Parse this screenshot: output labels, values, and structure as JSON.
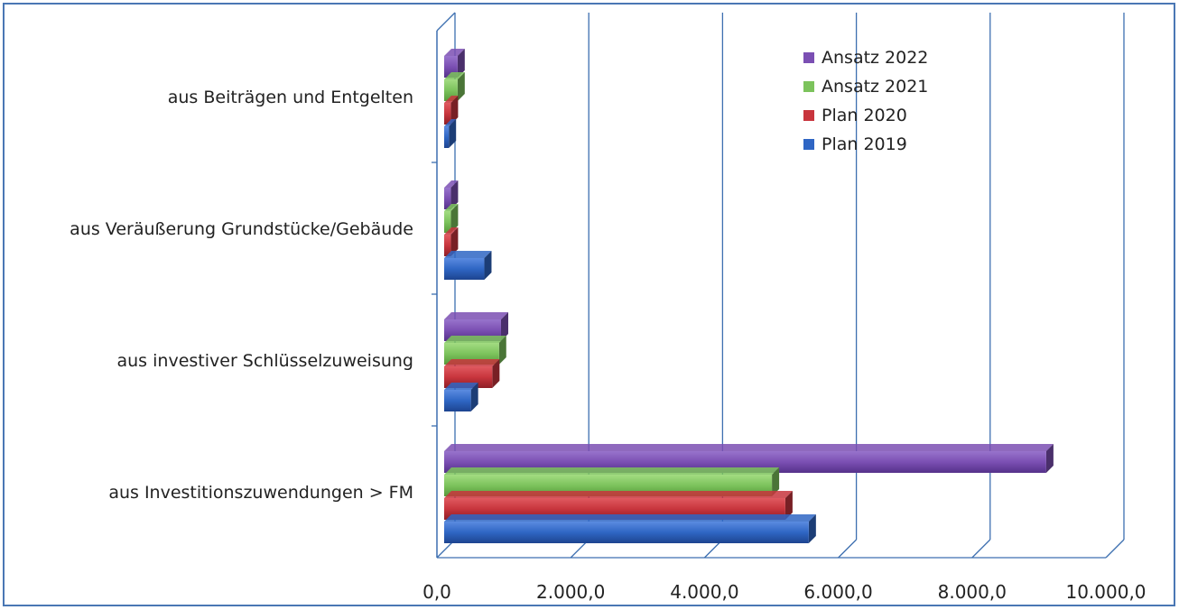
{
  "chart_data": {
    "type": "bar",
    "orientation": "horizontal",
    "categories": [
      "aus Beiträgen und Entgelten",
      "aus Veräußerung Grundstücke/Gebäude",
      "aus investiver Schlüsselzuweisung",
      "aus Investitionszuwendungen > FM"
    ],
    "series": [
      {
        "name": "Ansatz 2022",
        "color": "#7b4fb3",
        "values": [
          200,
          100,
          850,
          9000
        ]
      },
      {
        "name": "Ansatz 2021",
        "color": "#7cc35c",
        "values": [
          200,
          100,
          820,
          4900
        ]
      },
      {
        "name": "Plan 2020",
        "color": "#c8353d",
        "values": [
          100,
          100,
          720,
          5100
        ]
      },
      {
        "name": "Plan 2019",
        "color": "#2f66c4",
        "values": [
          70,
          600,
          400,
          5450
        ]
      }
    ],
    "xlim": [
      0,
      10000
    ],
    "xticks": [
      "0,0",
      "2.000,0",
      "4.000,0",
      "6.000,0",
      "8.000,0",
      "10.000,0"
    ],
    "grid": true,
    "legend_position": "top-right",
    "title": "",
    "xlabel": "",
    "ylabel": ""
  }
}
